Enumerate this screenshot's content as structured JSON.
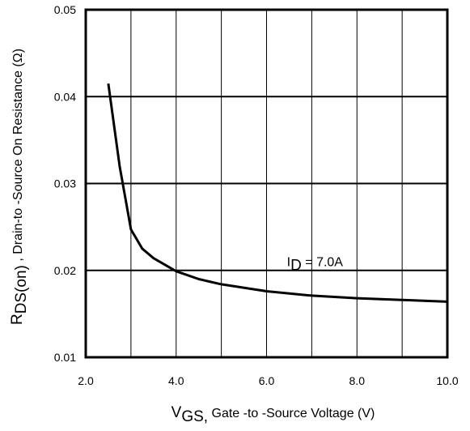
{
  "chart_data": {
    "type": "line",
    "xlabel": {
      "main": "V",
      "sub": "GS,",
      "rest": " Gate -to -Source Voltage  (V)"
    },
    "ylabel": {
      "main": "R",
      "sub": "DS(on)",
      "rest": " ,   Drain-to -Source On Resistance (Ω)"
    },
    "xlim": [
      2.0,
      10.0
    ],
    "ylim": [
      0.01,
      0.05
    ],
    "x_ticks": [
      2.0,
      4.0,
      6.0,
      8.0,
      10.0
    ],
    "x_tick_labels": [
      "2.0",
      "4.0",
      "6.0",
      "8.0",
      "10.0"
    ],
    "x_minor_gridlines": [
      3.0,
      5.0,
      7.0,
      9.0
    ],
    "y_ticks": [
      0.01,
      0.02,
      0.03,
      0.04,
      0.05
    ],
    "y_tick_labels": [
      "0.01",
      "0.02",
      "0.03",
      "0.04",
      "0.05"
    ],
    "grid": true,
    "series": [
      {
        "color": "#000000",
        "x": [
          2.5,
          2.75,
          3.0,
          3.25,
          3.5,
          4.0,
          4.5,
          5.0,
          6.0,
          7.0,
          8.0,
          9.0,
          10.0
        ],
        "y": [
          0.0415,
          0.032,
          0.0247,
          0.0225,
          0.0214,
          0.0199,
          0.019,
          0.0184,
          0.0176,
          0.0171,
          0.0168,
          0.0166,
          0.0164
        ]
      }
    ],
    "annotation": {
      "main": "I",
      "sub": "D",
      "rest": " = 7.0A",
      "x": 6.45,
      "y": 0.0205
    }
  }
}
